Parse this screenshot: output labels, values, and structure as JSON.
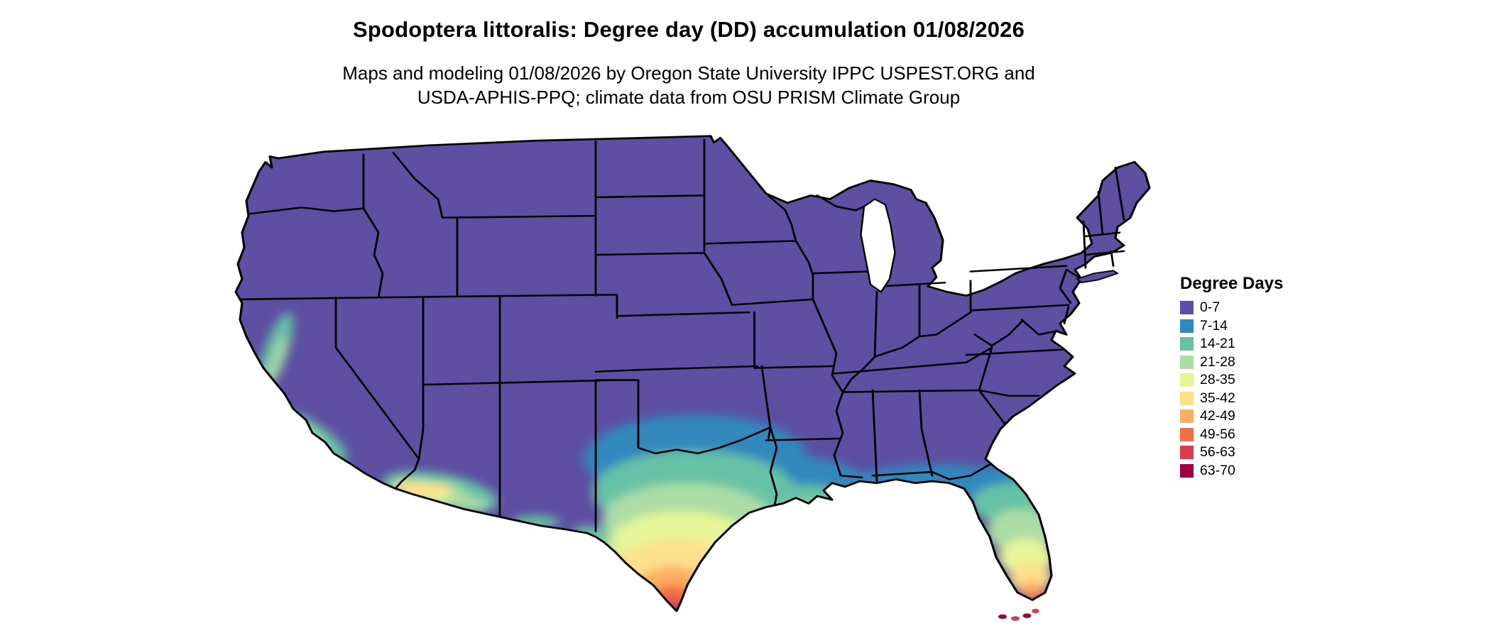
{
  "page": {
    "background": "#ffffff"
  },
  "header": {
    "title": "Spodoptera littoralis: Degree day (DD) accumulation 01/08/2026",
    "subtitle_line1": "Maps and modeling 01/08/2026 by Oregon State University IPPC USPEST.ORG and",
    "subtitle_line2": "USDA-APHIS-PPQ; climate data from OSU PRISM Climate Group"
  },
  "legend": {
    "title": "Degree Days",
    "items": [
      {
        "label": "0-7",
        "color": "#5e4fa2"
      },
      {
        "label": "7-14",
        "color": "#3288bd"
      },
      {
        "label": "14-21",
        "color": "#66c2a5"
      },
      {
        "label": "21-28",
        "color": "#abdda4"
      },
      {
        "label": "28-35",
        "color": "#e6f598"
      },
      {
        "label": "35-42",
        "color": "#fee08b"
      },
      {
        "label": "42-49",
        "color": "#fdae61"
      },
      {
        "label": "49-56",
        "color": "#f46d43"
      },
      {
        "label": "56-63",
        "color": "#d53e4f"
      },
      {
        "label": "63-70",
        "color": "#9e0142"
      }
    ]
  },
  "map": {
    "region": "Continental United States",
    "border_color": "#000000",
    "water_color": "#ffffff",
    "base_bin_label": "0-7"
  },
  "chart_data": {
    "type": "heatmap",
    "title": "Spodoptera littoralis: Degree day (DD) accumulation 01/08/2026",
    "legend_title": "Degree Days",
    "bins": [
      "0-7",
      "7-14",
      "14-21",
      "21-28",
      "28-35",
      "35-42",
      "42-49",
      "49-56",
      "56-63",
      "63-70"
    ],
    "bin_colors": [
      "#5e4fa2",
      "#3288bd",
      "#66c2a5",
      "#abdda4",
      "#e6f598",
      "#fee08b",
      "#fdae61",
      "#f46d43",
      "#d53e4f",
      "#9e0142"
    ],
    "notes": "Most of the continental US is in the 0-7 bin (purple); accumulation increases toward southern Texas (orange/red at the Rio Grande tip), the Gulf Coast and Louisiana, southern Florida and the Keys (highest bins), southern Arizona, and coastal southern California."
  }
}
